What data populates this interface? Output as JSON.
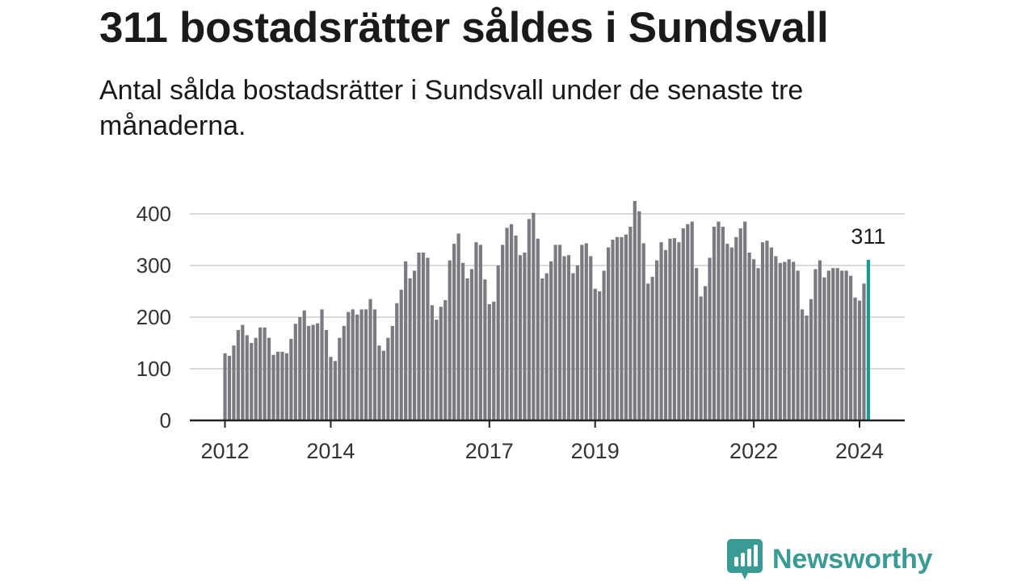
{
  "title": "311 bostadsrätter såldes i Sundsvall",
  "subtitle": "Antal sålda bostadsrätter i Sundsvall under de senaste tre månaderna.",
  "brand": {
    "name": "Newsworthy",
    "icon": "newsworthy-logo-icon",
    "color": "#3a9a94"
  },
  "colors": {
    "bar": "#7a7a80",
    "highlight": "#1a9a92",
    "grid": "#d9d9d9",
    "axis": "#222222"
  },
  "chart_data": {
    "type": "bar",
    "ylim": [
      0,
      400
    ],
    "yticks": [
      0,
      100,
      200,
      300,
      400
    ],
    "xtick_labels": [
      "2012",
      "2014",
      "2017",
      "2019",
      "2022",
      "2024"
    ],
    "grid": true,
    "start_month": "2012-01",
    "highlight_label": "311",
    "values": [
      130,
      125,
      145,
      175,
      185,
      165,
      150,
      160,
      180,
      180,
      160,
      127,
      133,
      133,
      130,
      158,
      187,
      200,
      213,
      183,
      185,
      188,
      215,
      175,
      123,
      115,
      160,
      183,
      210,
      215,
      205,
      215,
      215,
      235,
      215,
      145,
      135,
      160,
      183,
      227,
      253,
      308,
      275,
      290,
      325,
      325,
      315,
      223,
      195,
      220,
      233,
      310,
      342,
      362,
      305,
      275,
      293,
      345,
      340,
      273,
      225,
      230,
      300,
      340,
      373,
      380,
      358,
      320,
      325,
      390,
      402,
      352,
      275,
      285,
      308,
      340,
      340,
      318,
      320,
      285,
      300,
      340,
      343,
      318,
      255,
      250,
      290,
      335,
      350,
      355,
      355,
      360,
      375,
      425,
      405,
      343,
      265,
      278,
      310,
      345,
      330,
      352,
      353,
      345,
      372,
      380,
      385,
      295,
      240,
      260,
      315,
      375,
      385,
      375,
      342,
      335,
      355,
      372,
      385,
      325,
      312,
      295,
      345,
      348,
      335,
      318,
      305,
      307,
      312,
      307,
      290,
      215,
      203,
      235,
      293,
      310,
      277,
      290,
      295,
      295,
      290,
      290,
      280,
      238,
      232,
      265,
      311
    ]
  }
}
